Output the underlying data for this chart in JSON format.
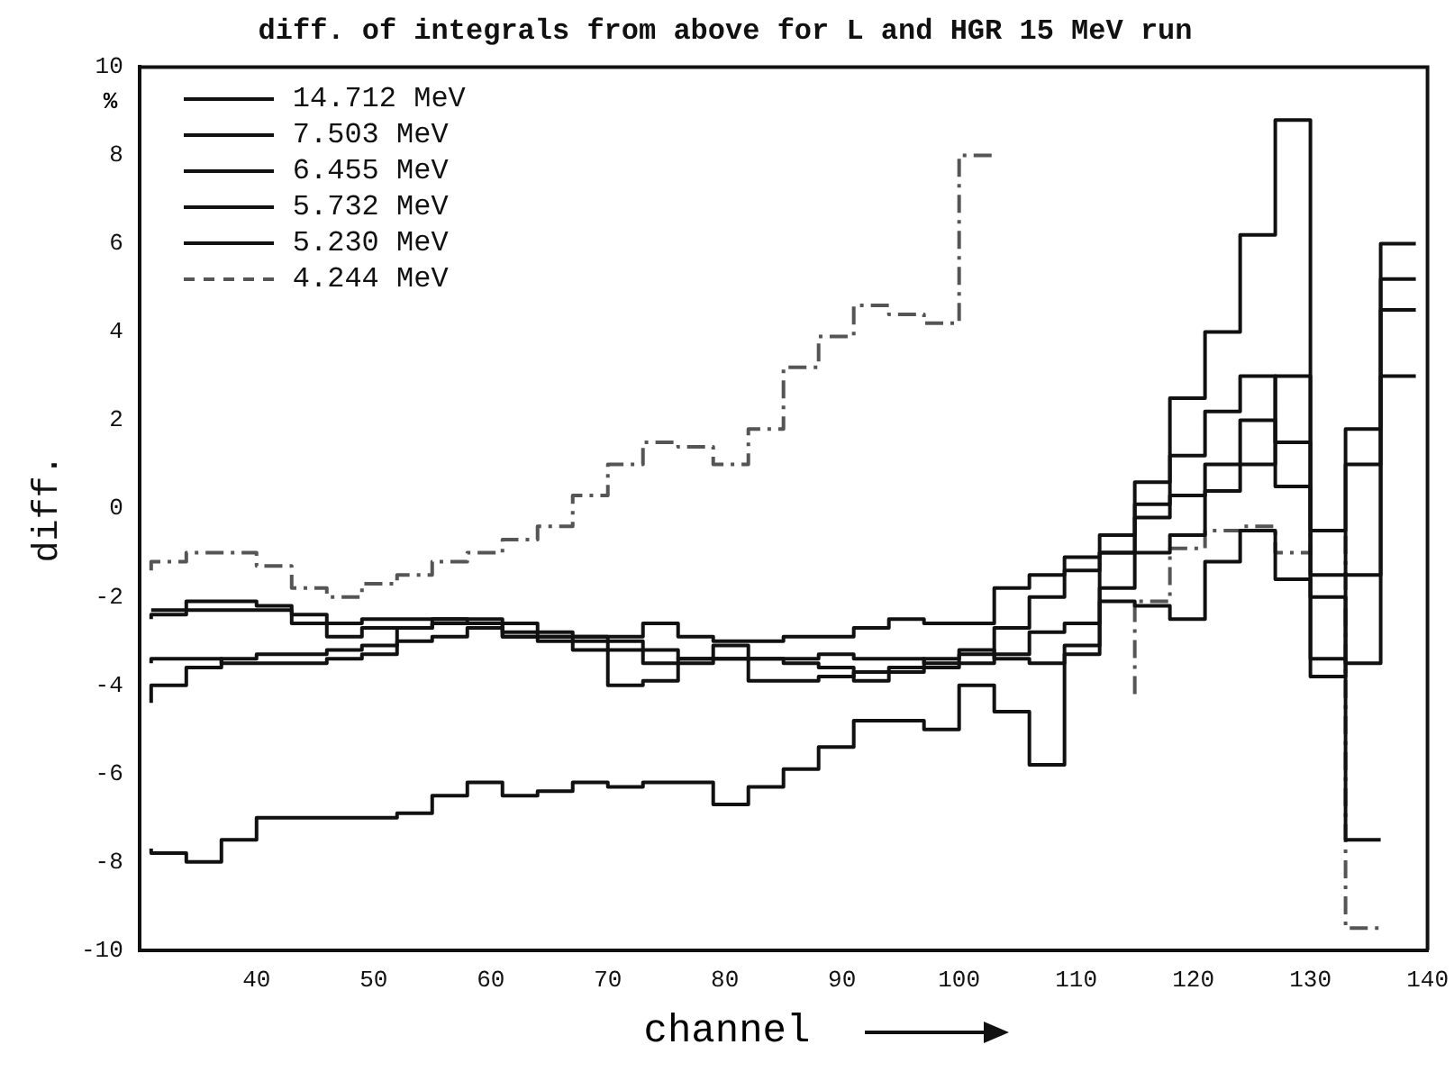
{
  "chart_data": {
    "type": "step",
    "title": "diff. of integrals from above for L and HGR 15 MeV run",
    "xlabel": "channel",
    "ylabel": "diff.",
    "annotations": [
      "%"
    ],
    "x": [
      31,
      34,
      37,
      40,
      43,
      46,
      49,
      52,
      55,
      58,
      61,
      64,
      67,
      70,
      73,
      76,
      79,
      82,
      85,
      88,
      91,
      94,
      97,
      100,
      103,
      106,
      109,
      112,
      115,
      118,
      121,
      124,
      127,
      130,
      133,
      136,
      139
    ],
    "xlim": [
      30,
      140
    ],
    "xticks": [
      40,
      50,
      60,
      70,
      80,
      90,
      100,
      110,
      120,
      130,
      140
    ],
    "ylim": [
      -10,
      10
    ],
    "yticks": [
      -10,
      -8,
      -6,
      -4,
      -2,
      0,
      2,
      4,
      6,
      8,
      10
    ],
    "grid": false,
    "legend": "top left",
    "marker": "none",
    "series": [
      {
        "name": "14.712 MeV",
        "color": "#111111",
        "line_style": "solid",
        "values": [
          -7.7,
          -7.8,
          -8.0,
          -7.5,
          -7.0,
          -7.0,
          -7.0,
          -7.0,
          -6.9,
          -6.5,
          -6.2,
          -6.5,
          -6.4,
          -6.2,
          -6.3,
          -6.2,
          -6.2,
          -6.7,
          -6.3,
          -5.9,
          -5.4,
          -4.8,
          -4.8,
          -5.0,
          -4.0,
          -4.6,
          -5.8,
          -3.3,
          -1.0,
          0.6,
          2.5,
          4.0,
          6.2,
          8.8,
          -3.4,
          -7.5,
          null
        ]
      },
      {
        "name": "7.503 MeV",
        "color": "#111111",
        "line_style": "solid",
        "values": [
          -4.4,
          -4.0,
          -3.6,
          -3.4,
          -3.3,
          -3.3,
          -3.2,
          -3.1,
          -2.7,
          -2.5,
          -2.5,
          -2.9,
          -3.0,
          -3.2,
          -4.0,
          -3.9,
          -3.5,
          -3.4,
          -3.4,
          -3.4,
          -3.3,
          -3.4,
          -3.4,
          -3.5,
          -3.5,
          -2.7,
          -2.0,
          -1.4,
          -1.0,
          -0.2,
          0.3,
          1.0,
          2.0,
          1.5,
          -2.0,
          -3.5,
          4.5
        ]
      },
      {
        "name": "6.455 MeV",
        "color": "#111111",
        "line_style": "solid",
        "values": [
          -2.5,
          -2.4,
          -2.3,
          -2.3,
          -2.3,
          -2.6,
          -2.9,
          -2.7,
          -2.7,
          -2.6,
          -2.6,
          -2.6,
          -2.8,
          -2.9,
          -3.0,
          -3.2,
          -3.4,
          -3.4,
          -3.9,
          -3.9,
          -3.8,
          -3.7,
          -3.6,
          -3.4,
          -3.3,
          -3.4,
          -3.5,
          -3.1,
          -2.1,
          -2.2,
          -2.5,
          -1.2,
          -0.5,
          -1.6,
          -3.8,
          -1.5,
          3.0
        ]
      },
      {
        "name": "5.732 MeV",
        "color": "#111111",
        "line_style": "solid",
        "values": [
          -2.3,
          -2.3,
          -2.1,
          -2.1,
          -2.2,
          -2.4,
          -2.6,
          -2.5,
          -2.5,
          -2.5,
          -2.6,
          -2.9,
          -2.9,
          -2.9,
          -2.9,
          -2.6,
          -2.9,
          -3.0,
          -3.0,
          -2.9,
          -2.9,
          -2.7,
          -2.5,
          -2.6,
          -2.6,
          -1.8,
          -1.5,
          -1.1,
          -0.6,
          0.1,
          1.2,
          2.2,
          3.0,
          0.5,
          -1.5,
          1.8,
          6.0
        ]
      },
      {
        "name": "5.230 MeV",
        "color": "#111111",
        "line_style": "solid",
        "values": [
          -3.5,
          -3.4,
          -3.4,
          -3.5,
          -3.5,
          -3.5,
          -3.4,
          -3.3,
          -3.0,
          -2.9,
          -2.7,
          -2.8,
          -2.9,
          -3.0,
          -3.2,
          -3.5,
          -3.4,
          -3.1,
          -3.4,
          -3.5,
          -3.6,
          -3.9,
          -3.7,
          -3.6,
          -3.2,
          -3.3,
          -2.8,
          -2.6,
          -1.8,
          -1.0,
          -0.6,
          0.4,
          1.0,
          3.0,
          -0.5,
          1.0,
          5.2
        ]
      },
      {
        "name": "4.244 MeV",
        "color": "#555555",
        "line_style": "dashed",
        "values": [
          -1.4,
          -1.2,
          -1.0,
          -1.0,
          -1.3,
          -1.8,
          -2.0,
          -1.7,
          -1.5,
          -1.2,
          -1.0,
          -0.7,
          -0.4,
          0.3,
          1.0,
          1.5,
          1.4,
          1.0,
          1.8,
          3.2,
          3.9,
          4.6,
          4.4,
          4.2,
          8.0,
          null,
          null,
          null,
          -4.2,
          -2.1,
          -0.9,
          -0.5,
          -0.4,
          -1.0,
          -0.5,
          -9.5,
          null
        ]
      }
    ]
  }
}
